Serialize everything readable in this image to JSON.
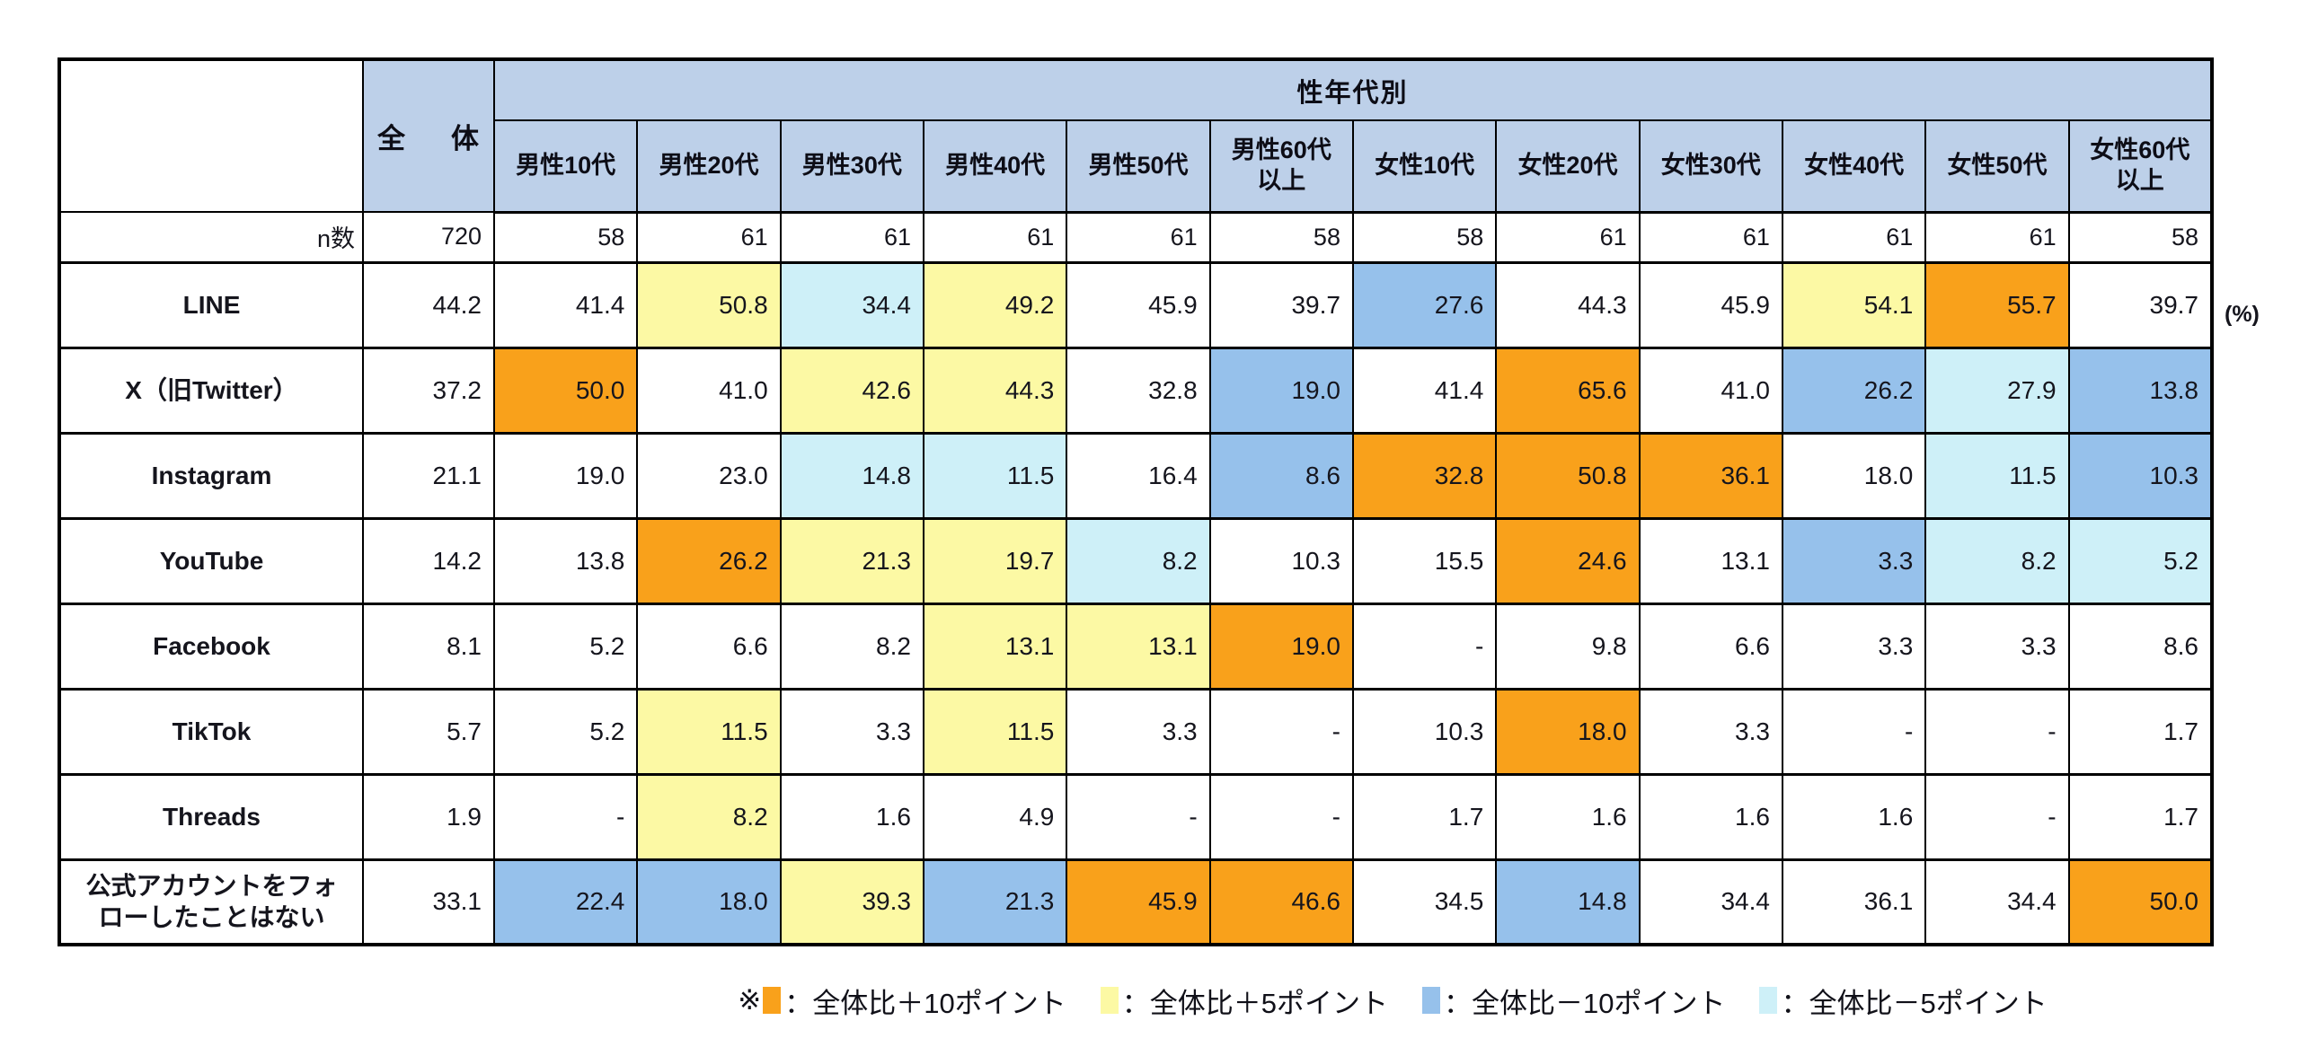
{
  "chart_data": {
    "type": "table",
    "group_header": "性年代別",
    "n_label": "n数",
    "unit_label": "(%)",
    "categories": [
      "全　体",
      "男性10代",
      "男性20代",
      "男性30代",
      "男性40代",
      "男性50代",
      "男性60代\n以上",
      "女性10代",
      "女性20代",
      "女性30代",
      "女性40代",
      "女性50代",
      "女性60代\n以上"
    ],
    "n_values": [
      "720",
      "58",
      "61",
      "61",
      "61",
      "61",
      "58",
      "58",
      "61",
      "61",
      "61",
      "61",
      "58"
    ],
    "series": [
      {
        "name": "LINE",
        "values": [
          "44.2",
          "41.4",
          "50.8",
          "34.4",
          "49.2",
          "45.9",
          "39.7",
          "27.6",
          "44.3",
          "45.9",
          "54.1",
          "55.7",
          "39.7"
        ],
        "highlights": [
          null,
          null,
          "p5",
          "m5",
          "p5",
          null,
          null,
          "m10",
          null,
          null,
          "p5",
          "p10",
          null
        ]
      },
      {
        "name": "X（旧Twitter）",
        "values": [
          "37.2",
          "50.0",
          "41.0",
          "42.6",
          "44.3",
          "32.8",
          "19.0",
          "41.4",
          "65.6",
          "41.0",
          "26.2",
          "27.9",
          "13.8"
        ],
        "highlights": [
          null,
          "p10",
          null,
          "p5",
          "p5",
          null,
          "m10",
          null,
          "p10",
          null,
          "m10",
          "m5",
          "m10"
        ]
      },
      {
        "name": "Instagram",
        "values": [
          "21.1",
          "19.0",
          "23.0",
          "14.8",
          "11.5",
          "16.4",
          "8.6",
          "32.8",
          "50.8",
          "36.1",
          "18.0",
          "11.5",
          "10.3"
        ],
        "highlights": [
          null,
          null,
          null,
          "m5",
          "m5",
          null,
          "m10",
          "p10",
          "p10",
          "p10",
          null,
          "m5",
          "m10"
        ]
      },
      {
        "name": "YouTube",
        "values": [
          "14.2",
          "13.8",
          "26.2",
          "21.3",
          "19.7",
          "8.2",
          "10.3",
          "15.5",
          "24.6",
          "13.1",
          "3.3",
          "8.2",
          "5.2"
        ],
        "highlights": [
          null,
          null,
          "p10",
          "p5",
          "p5",
          "m5",
          null,
          null,
          "p10",
          null,
          "m10",
          "m5",
          "m5"
        ]
      },
      {
        "name": "Facebook",
        "values": [
          "8.1",
          "5.2",
          "6.6",
          "8.2",
          "13.1",
          "13.1",
          "19.0",
          "-",
          "9.8",
          "6.6",
          "3.3",
          "3.3",
          "8.6"
        ],
        "highlights": [
          null,
          null,
          null,
          null,
          "p5",
          "p5",
          "p10",
          null,
          null,
          null,
          null,
          null,
          null
        ]
      },
      {
        "name": "TikTok",
        "values": [
          "5.7",
          "5.2",
          "11.5",
          "3.3",
          "11.5",
          "3.3",
          "-",
          "10.3",
          "18.0",
          "3.3",
          "-",
          "-",
          "1.7"
        ],
        "highlights": [
          null,
          null,
          "p5",
          null,
          "p5",
          null,
          null,
          null,
          "p10",
          null,
          null,
          null,
          null
        ]
      },
      {
        "name": "Threads",
        "values": [
          "1.9",
          "-",
          "8.2",
          "1.6",
          "4.9",
          "-",
          "-",
          "1.7",
          "1.6",
          "1.6",
          "1.6",
          "-",
          "1.7"
        ],
        "highlights": [
          null,
          null,
          "p5",
          null,
          null,
          null,
          null,
          null,
          null,
          null,
          null,
          null,
          null
        ]
      },
      {
        "name": "公式アカウントをフォ\nローしたことはない",
        "values": [
          "33.1",
          "22.4",
          "18.0",
          "39.3",
          "21.3",
          "45.9",
          "46.6",
          "34.5",
          "14.8",
          "34.4",
          "36.1",
          "34.4",
          "50.0"
        ],
        "highlights": [
          null,
          "m10",
          "m10",
          "p5",
          "m10",
          "p10",
          "p10",
          null,
          "m10",
          null,
          null,
          null,
          "p10"
        ]
      }
    ]
  },
  "legend": {
    "items": [
      {
        "mark": "※",
        "color": "p10",
        "label": "：全体比＋10ポイント"
      },
      {
        "mark": "",
        "color": "p5",
        "label": "：全体比＋5ポイント"
      },
      {
        "mark": "",
        "color": "m10",
        "label": "：全体比－10ポイント"
      },
      {
        "mark": "",
        "color": "m5",
        "label": "：全体比－5ポイント"
      }
    ]
  },
  "palette": {
    "p10": "#F9A11B",
    "p5": "#FCF9A4",
    "m10": "#96C1EB",
    "m5": "#CEF0F8",
    "header": "#BDD0E9"
  }
}
